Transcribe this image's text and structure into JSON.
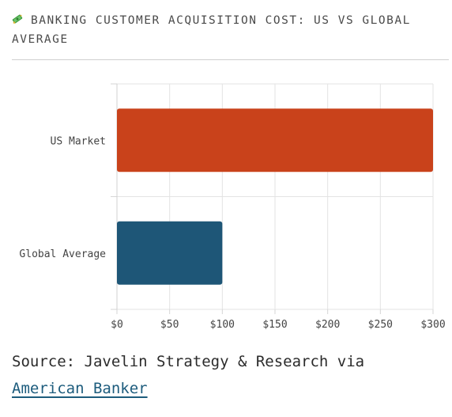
{
  "header": {
    "icon": "money-icon",
    "title": "BANKING CUSTOMER ACQUISITION COST: US VS GLOBAL AVERAGE"
  },
  "chart_data": {
    "type": "bar",
    "orientation": "horizontal",
    "categories": [
      "US Market",
      "Global Average"
    ],
    "values": [
      300,
      100
    ],
    "colors": [
      "#c9421b",
      "#1e5677"
    ],
    "xlim": [
      0,
      300
    ],
    "xticks": [
      0,
      50,
      100,
      150,
      200,
      250,
      300
    ],
    "xtick_labels": [
      "$0",
      "$50",
      "$100",
      "$150",
      "$200",
      "$250",
      "$300"
    ],
    "title": "",
    "xlabel": "",
    "ylabel": "",
    "grid": true,
    "legend": "none"
  },
  "source": {
    "prefix": "Source: Javelin Strategy & Research via",
    "link_text": "American Banker"
  }
}
